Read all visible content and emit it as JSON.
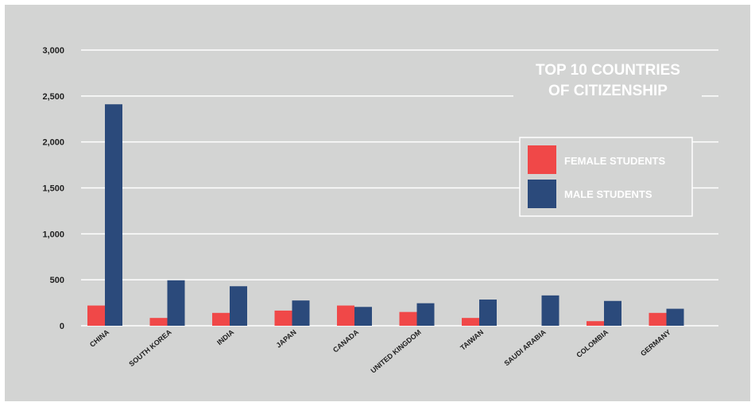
{
  "chart_data": {
    "type": "bar",
    "title_lines": [
      "TOP 10 COUNTRIES",
      "OF CITIZENSHIP"
    ],
    "categories": [
      "CHINA",
      "SOUTH KOREA",
      "INDIA",
      "JAPAN",
      "CANADA",
      "UNITED KINGDOM",
      "TAIWAN",
      "SAUDI ARABIA",
      "COLOMBIA",
      "GERMANY"
    ],
    "series": [
      {
        "name": "FEMALE STUDENTS",
        "color": "#f04848",
        "values": [
          220,
          85,
          140,
          165,
          220,
          150,
          85,
          0,
          50,
          140
        ]
      },
      {
        "name": "MALE STUDENTS",
        "color": "#2b4a7b",
        "values": [
          2410,
          495,
          430,
          275,
          205,
          245,
          285,
          330,
          270,
          185
        ]
      }
    ],
    "yticks": [
      "0",
      "500",
      "1,000",
      "1,500",
      "2,000",
      "2,500",
      "3,000"
    ],
    "ylim": [
      0,
      3000
    ],
    "grid": true,
    "grid_color": "#ffffff",
    "background_color": "#d3d4d3",
    "legend_position": "right"
  }
}
